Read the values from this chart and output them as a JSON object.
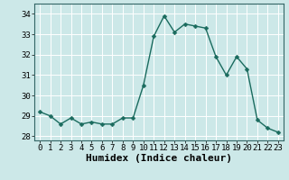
{
  "x": [
    0,
    1,
    2,
    3,
    4,
    5,
    6,
    7,
    8,
    9,
    10,
    11,
    12,
    13,
    14,
    15,
    16,
    17,
    18,
    19,
    20,
    21,
    22,
    23
  ],
  "y": [
    29.2,
    29.0,
    28.6,
    28.9,
    28.6,
    28.7,
    28.6,
    28.6,
    28.9,
    28.9,
    30.5,
    32.9,
    33.9,
    33.1,
    33.5,
    33.4,
    33.3,
    31.9,
    31.0,
    31.9,
    31.3,
    28.8,
    28.4,
    28.2
  ],
  "xlabel": "Humidex (Indice chaleur)",
  "ylim": [
    27.8,
    34.5
  ],
  "xlim": [
    -0.5,
    23.5
  ],
  "yticks": [
    28,
    29,
    30,
    31,
    32,
    33,
    34
  ],
  "xticks": [
    0,
    1,
    2,
    3,
    4,
    5,
    6,
    7,
    8,
    9,
    10,
    11,
    12,
    13,
    14,
    15,
    16,
    17,
    18,
    19,
    20,
    21,
    22,
    23
  ],
  "line_color": "#1a6b5e",
  "marker_color": "#1a6b5e",
  "bg_color": "#cce8e8",
  "grid_color": "#ffffff",
  "xlabel_fontsize": 8,
  "tick_fontsize": 6.5,
  "line_width": 1.0,
  "marker_size": 2.5
}
